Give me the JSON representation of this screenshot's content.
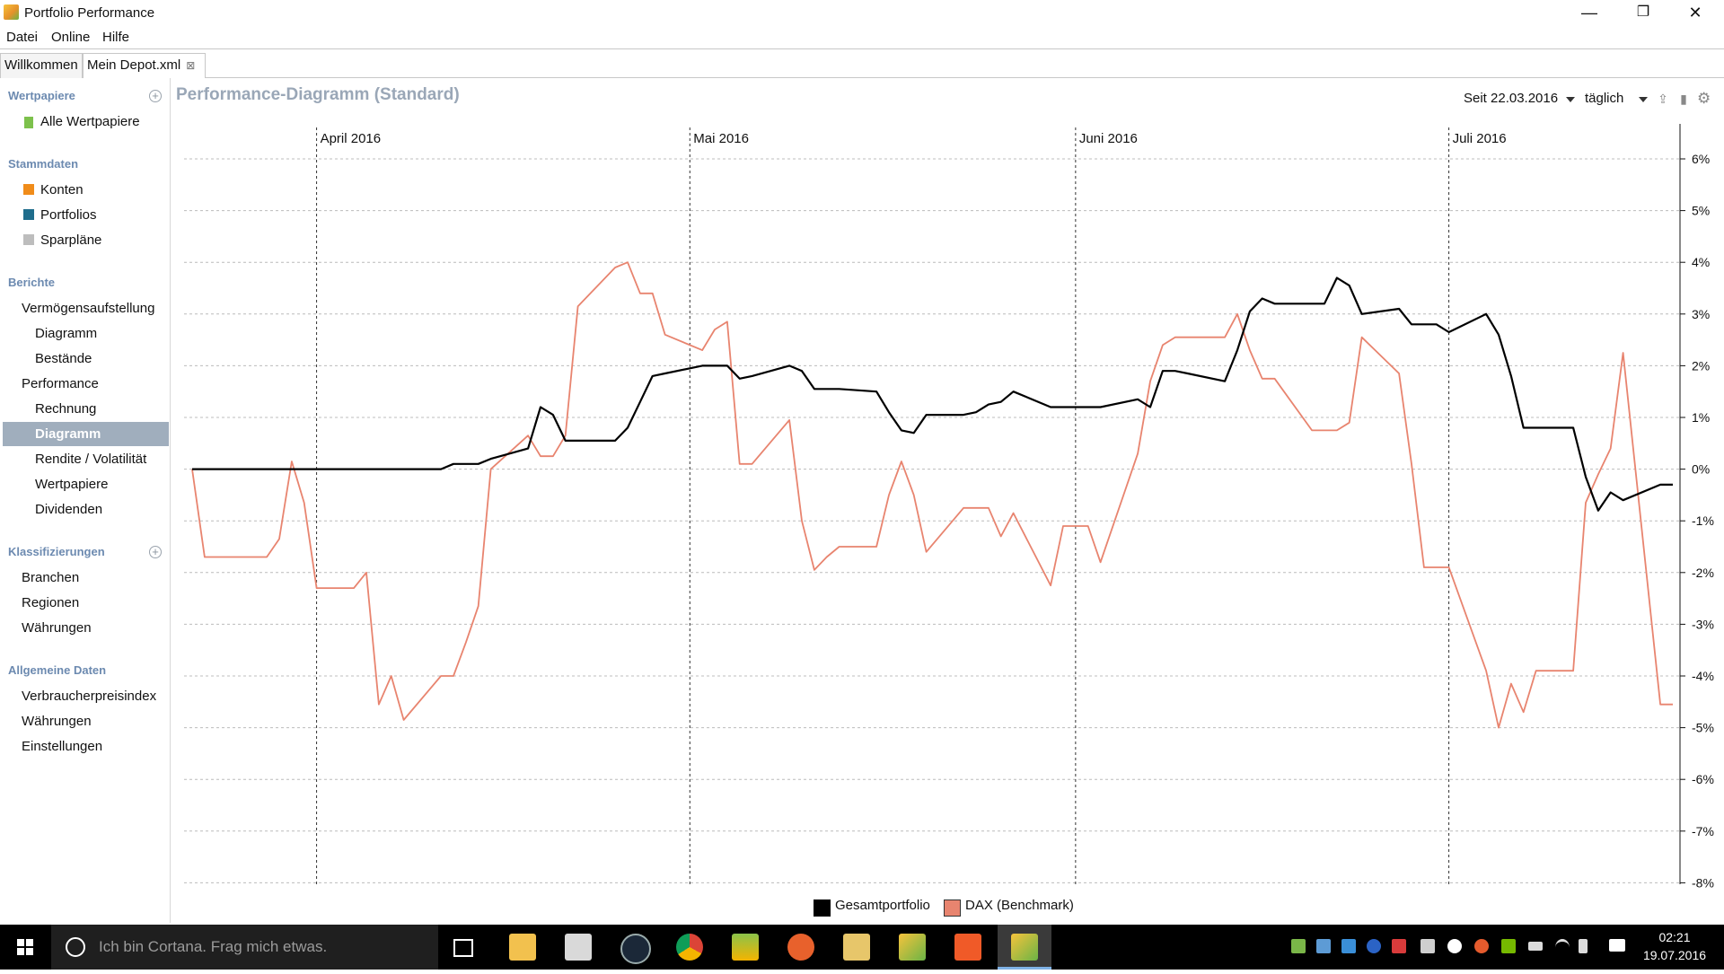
{
  "app": {
    "title": "Portfolio Performance"
  },
  "window_controls": {
    "minimize": "—",
    "restore": "❐",
    "close": "✕"
  },
  "menu": [
    "Datei",
    "Online",
    "Hilfe"
  ],
  "tabs": [
    {
      "label": "Willkommen"
    },
    {
      "label": "Mein Depot.xml",
      "close": "⊠"
    }
  ],
  "sidebar": {
    "wertpapiere": {
      "header": "Wertpapiere",
      "items": [
        "Alle Wertpapiere"
      ]
    },
    "stammdaten": {
      "header": "Stammdaten",
      "items": [
        "Konten",
        "Portfolios",
        "Sparpläne"
      ]
    },
    "berichte": {
      "header": "Berichte",
      "items": [
        "Vermögensaufstellung",
        "Diagramm",
        "Bestände",
        "Performance",
        "Rechnung",
        "Diagramm",
        "Rendite / Volatilität",
        "Wertpapiere",
        "Dividenden"
      ]
    },
    "klassifizierungen": {
      "header": "Klassifizierungen",
      "items": [
        "Branchen",
        "Regionen",
        "Währungen"
      ]
    },
    "allgemeine": {
      "header": "Allgemeine Daten",
      "items": [
        "Verbraucherpreisindex",
        "Währungen",
        "Einstellungen"
      ]
    },
    "selected": "Diagramm"
  },
  "main": {
    "title": "Performance-Diagramm (Standard)",
    "period": "Seit 22.03.2016",
    "interval": "täglich"
  },
  "colors": {
    "portfolio": "#000000",
    "benchmark": "#e8846f",
    "accent": "#a0aebd",
    "section_header": "#6c8ab0"
  },
  "chart_data": {
    "type": "line",
    "x_months": [
      "April 2016",
      "Mai 2016",
      "Juni 2016",
      "Juli 2016"
    ],
    "y_ticks": [
      "6%",
      "5%",
      "4%",
      "3%",
      "2%",
      "1%",
      "0%",
      "-1%",
      "-2%",
      "-3%",
      "-4%",
      "-5%",
      "-6%",
      "-7%",
      "-8%"
    ],
    "ylim": [
      -8,
      6.5
    ],
    "x_start": "2016-03-22",
    "x_end": "2016-07-19",
    "series": [
      {
        "name": "Gesamtportfolio",
        "color": "#000000",
        "points": [
          [
            "2016-03-22",
            0
          ],
          [
            "2016-03-23",
            0
          ],
          [
            "2016-03-24",
            0
          ],
          [
            "2016-03-25",
            0
          ],
          [
            "2016-03-28",
            0
          ],
          [
            "2016-03-29",
            0
          ],
          [
            "2016-03-30",
            0
          ],
          [
            "2016-03-31",
            0
          ],
          [
            "2016-04-01",
            0
          ],
          [
            "2016-04-04",
            0
          ],
          [
            "2016-04-05",
            0
          ],
          [
            "2016-04-06",
            0
          ],
          [
            "2016-04-07",
            0
          ],
          [
            "2016-04-08",
            0
          ],
          [
            "2016-04-11",
            0
          ],
          [
            "2016-04-12",
            0.1
          ],
          [
            "2016-04-13",
            0.1
          ],
          [
            "2016-04-14",
            0.1
          ],
          [
            "2016-04-15",
            0.2
          ],
          [
            "2016-04-18",
            0.4
          ],
          [
            "2016-04-19",
            1.2
          ],
          [
            "2016-04-20",
            1.05
          ],
          [
            "2016-04-21",
            0.55
          ],
          [
            "2016-04-22",
            0.55
          ],
          [
            "2016-04-25",
            0.55
          ],
          [
            "2016-04-26",
            0.8
          ],
          [
            "2016-04-27",
            1.3
          ],
          [
            "2016-04-28",
            1.8
          ],
          [
            "2016-04-29",
            1.85
          ],
          [
            "2016-05-02",
            2.0
          ],
          [
            "2016-05-03",
            2.0
          ],
          [
            "2016-05-04",
            2.0
          ],
          [
            "2016-05-05",
            1.75
          ],
          [
            "2016-05-06",
            1.8
          ],
          [
            "2016-05-09",
            2.0
          ],
          [
            "2016-05-10",
            1.9
          ],
          [
            "2016-05-11",
            1.55
          ],
          [
            "2016-05-12",
            1.55
          ],
          [
            "2016-05-13",
            1.55
          ],
          [
            "2016-05-16",
            1.5
          ],
          [
            "2016-05-17",
            1.1
          ],
          [
            "2016-05-18",
            0.75
          ],
          [
            "2016-05-19",
            0.7
          ],
          [
            "2016-05-20",
            1.05
          ],
          [
            "2016-05-23",
            1.05
          ],
          [
            "2016-05-24",
            1.1
          ],
          [
            "2016-05-25",
            1.25
          ],
          [
            "2016-05-26",
            1.3
          ],
          [
            "2016-05-27",
            1.5
          ],
          [
            "2016-05-30",
            1.2
          ],
          [
            "2016-05-31",
            1.2
          ],
          [
            "2016-06-01",
            1.2
          ],
          [
            "2016-06-02",
            1.2
          ],
          [
            "2016-06-03",
            1.2
          ],
          [
            "2016-06-06",
            1.35
          ],
          [
            "2016-06-07",
            1.2
          ],
          [
            "2016-06-08",
            1.9
          ],
          [
            "2016-06-09",
            1.9
          ],
          [
            "2016-06-10",
            1.85
          ],
          [
            "2016-06-13",
            1.7
          ],
          [
            "2016-06-14",
            2.3
          ],
          [
            "2016-06-15",
            3.05
          ],
          [
            "2016-06-16",
            3.3
          ],
          [
            "2016-06-17",
            3.2
          ],
          [
            "2016-06-20",
            3.2
          ],
          [
            "2016-06-21",
            3.2
          ],
          [
            "2016-06-22",
            3.7
          ],
          [
            "2016-06-23",
            3.55
          ],
          [
            "2016-06-24",
            3.0
          ],
          [
            "2016-06-27",
            3.1
          ],
          [
            "2016-06-28",
            2.8
          ],
          [
            "2016-06-29",
            2.8
          ],
          [
            "2016-06-30",
            2.8
          ],
          [
            "2016-07-01",
            2.65
          ],
          [
            "2016-07-04",
            3.0
          ],
          [
            "2016-07-05",
            2.6
          ],
          [
            "2016-07-06",
            1.8
          ],
          [
            "2016-07-07",
            0.8
          ],
          [
            "2016-07-08",
            0.8
          ],
          [
            "2016-07-11",
            0.8
          ],
          [
            "2016-07-12",
            -0.15
          ],
          [
            "2016-07-13",
            -0.8
          ],
          [
            "2016-07-14",
            -0.45
          ],
          [
            "2016-07-15",
            -0.6
          ],
          [
            "2016-07-18",
            -0.3
          ],
          [
            "2016-07-19",
            -0.3
          ]
        ]
      },
      {
        "name": "DAX (Benchmark)",
        "color": "#e8846f",
        "points": [
          [
            "2016-03-22",
            0
          ],
          [
            "2016-03-23",
            -1.7
          ],
          [
            "2016-03-24",
            -1.7
          ],
          [
            "2016-03-25",
            -1.7
          ],
          [
            "2016-03-28",
            -1.7
          ],
          [
            "2016-03-29",
            -1.35
          ],
          [
            "2016-03-30",
            0.15
          ],
          [
            "2016-03-31",
            -0.65
          ],
          [
            "2016-04-01",
            -2.3
          ],
          [
            "2016-04-04",
            -2.3
          ],
          [
            "2016-04-05",
            -2.0
          ],
          [
            "2016-04-06",
            -4.55
          ],
          [
            "2016-04-07",
            -4.0
          ],
          [
            "2016-04-08",
            -4.85
          ],
          [
            "2016-04-11",
            -4.0
          ],
          [
            "2016-04-12",
            -4.0
          ],
          [
            "2016-04-13",
            -3.35
          ],
          [
            "2016-04-14",
            -2.65
          ],
          [
            "2016-04-15",
            0
          ],
          [
            "2016-04-18",
            0.65
          ],
          [
            "2016-04-19",
            0.25
          ],
          [
            "2016-04-20",
            0.25
          ],
          [
            "2016-04-21",
            0.65
          ],
          [
            "2016-04-22",
            3.15
          ],
          [
            "2016-04-25",
            3.9
          ],
          [
            "2016-04-26",
            4.0
          ],
          [
            "2016-04-27",
            3.4
          ],
          [
            "2016-04-28",
            3.4
          ],
          [
            "2016-04-29",
            2.6
          ],
          [
            "2016-05-02",
            2.3
          ],
          [
            "2016-05-03",
            2.7
          ],
          [
            "2016-05-04",
            2.85
          ],
          [
            "2016-05-05",
            0.1
          ],
          [
            "2016-05-06",
            0.1
          ],
          [
            "2016-05-09",
            0.95
          ],
          [
            "2016-05-10",
            -1.0
          ],
          [
            "2016-05-11",
            -1.95
          ],
          [
            "2016-05-12",
            -1.7
          ],
          [
            "2016-05-13",
            -1.5
          ],
          [
            "2016-05-16",
            -1.5
          ],
          [
            "2016-05-17",
            -0.5
          ],
          [
            "2016-05-18",
            0.15
          ],
          [
            "2016-05-19",
            -0.5
          ],
          [
            "2016-05-20",
            -1.6
          ],
          [
            "2016-05-23",
            -0.75
          ],
          [
            "2016-05-24",
            -0.75
          ],
          [
            "2016-05-25",
            -0.75
          ],
          [
            "2016-05-26",
            -1.3
          ],
          [
            "2016-05-27",
            -0.85
          ],
          [
            "2016-05-30",
            -2.25
          ],
          [
            "2016-05-31",
            -1.1
          ],
          [
            "2016-06-01",
            -1.1
          ],
          [
            "2016-06-02",
            -1.1
          ],
          [
            "2016-06-03",
            -1.8
          ],
          [
            "2016-06-06",
            0.3
          ],
          [
            "2016-06-07",
            1.7
          ],
          [
            "2016-06-08",
            2.4
          ],
          [
            "2016-06-09",
            2.55
          ],
          [
            "2016-06-10",
            2.55
          ],
          [
            "2016-06-13",
            2.55
          ],
          [
            "2016-06-14",
            3.0
          ],
          [
            "2016-06-15",
            2.3
          ],
          [
            "2016-06-16",
            1.75
          ],
          [
            "2016-06-17",
            1.75
          ],
          [
            "2016-06-20",
            0.75
          ],
          [
            "2016-06-21",
            0.75
          ],
          [
            "2016-06-22",
            0.75
          ],
          [
            "2016-06-23",
            0.9
          ],
          [
            "2016-06-24",
            2.55
          ],
          [
            "2016-06-27",
            1.85
          ],
          [
            "2016-06-28",
            0.1
          ],
          [
            "2016-06-29",
            -1.9
          ],
          [
            "2016-06-30",
            -1.9
          ],
          [
            "2016-07-01",
            -1.9
          ],
          [
            "2016-07-04",
            -3.9
          ],
          [
            "2016-07-05",
            -5.0
          ],
          [
            "2016-07-06",
            -4.15
          ],
          [
            "2016-07-07",
            -4.7
          ],
          [
            "2016-07-08",
            -3.9
          ],
          [
            "2016-07-11",
            -3.9
          ],
          [
            "2016-07-12",
            -0.65
          ],
          [
            "2016-07-13",
            -0.1
          ],
          [
            "2016-07-14",
            0.4
          ],
          [
            "2016-07-15",
            2.25
          ],
          [
            "2016-07-18",
            -4.55
          ],
          [
            "2016-07-19",
            -4.55
          ]
        ]
      }
    ],
    "legend": [
      "Gesamtportfolio",
      "DAX (Benchmark)"
    ],
    "legend_position": "bottom",
    "grid": true
  },
  "taskbar": {
    "search": "Ich bin Cortana. Frag mich etwas.",
    "time": "02:21",
    "date": "19.07.2016"
  }
}
